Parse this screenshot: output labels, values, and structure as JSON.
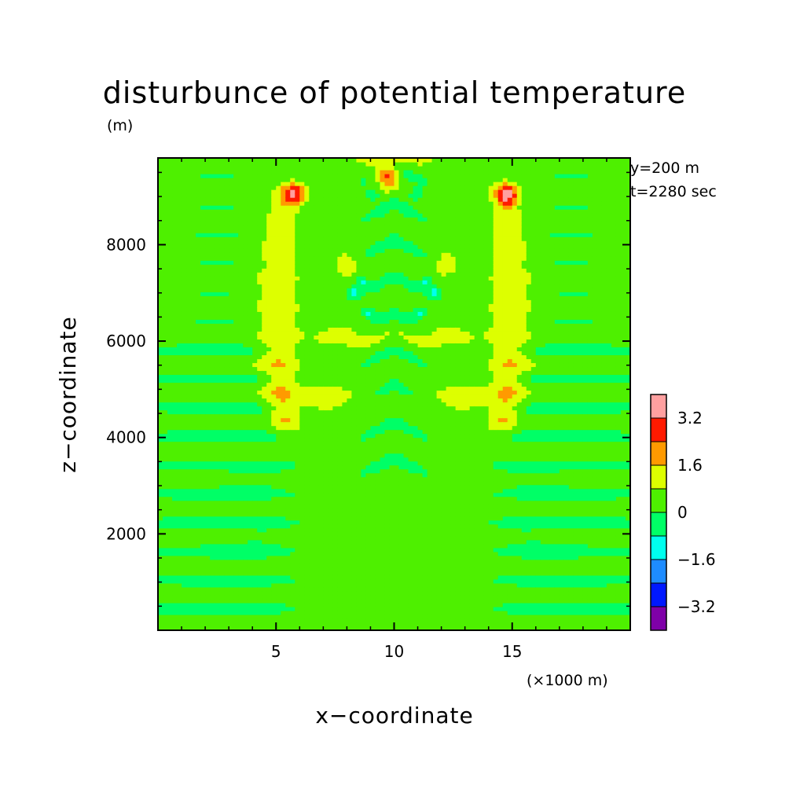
{
  "chart_data": {
    "type": "heatmap",
    "title": "disturbunce of potential temperature",
    "ylabel_unit": "(m)",
    "xlabel": "x−coordinate",
    "ylabel": "z−coordinate",
    "xunit": "(×1000 m)",
    "annotations": [
      "y=200 m",
      "t=2280 sec"
    ],
    "xlim": [
      0,
      20
    ],
    "ylim": [
      0,
      9800
    ],
    "xticks": [
      5,
      10,
      15
    ],
    "xtick_labels": [
      "5",
      "10",
      "15"
    ],
    "yticks": [
      2000,
      4000,
      6000,
      8000
    ],
    "ytick_labels": [
      "2000",
      "4000",
      "6000",
      "8000"
    ],
    "colorbar": {
      "levels": [
        -4,
        -3.2,
        -2.4,
        -1.6,
        -0.8,
        0,
        0.8,
        1.6,
        2.4,
        3.2,
        4
      ],
      "colors": [
        "#7f00a8",
        "#0018ff",
        "#1e8cff",
        "#00ffee",
        "#00ff66",
        "#4ef000",
        "#ddff00",
        "#ff9a00",
        "#ff1a00",
        "#ffa0a0"
      ],
      "labels": [
        "−3.2",
        "−1.6",
        "0",
        "1.6",
        "3.2"
      ],
      "label_values": [
        -3.2,
        -1.6,
        0,
        1.6,
        3.2
      ]
    },
    "features": {
      "background_value": 0.2,
      "warm_arcs": [
        {
          "x_center": 5.5,
          "z_range": [
            4200,
            9200
          ],
          "max_value": 3.0
        },
        {
          "x_center": 14.5,
          "z_range": [
            4200,
            9200
          ],
          "max_value": 3.0
        }
      ],
      "hot_spots": [
        {
          "x": 5.8,
          "z": 9050,
          "value": 2.9
        },
        {
          "x": 14.8,
          "z": 9050,
          "value": 2.9
        },
        {
          "x": 9.7,
          "z": 9450,
          "value": 2.9
        },
        {
          "x": 8.0,
          "z": 7600,
          "value": 1.8
        },
        {
          "x": 12.2,
          "z": 7600,
          "value": 1.8
        }
      ]
    }
  },
  "colors": {
    "background": "#ffffff",
    "text": "#000000"
  }
}
